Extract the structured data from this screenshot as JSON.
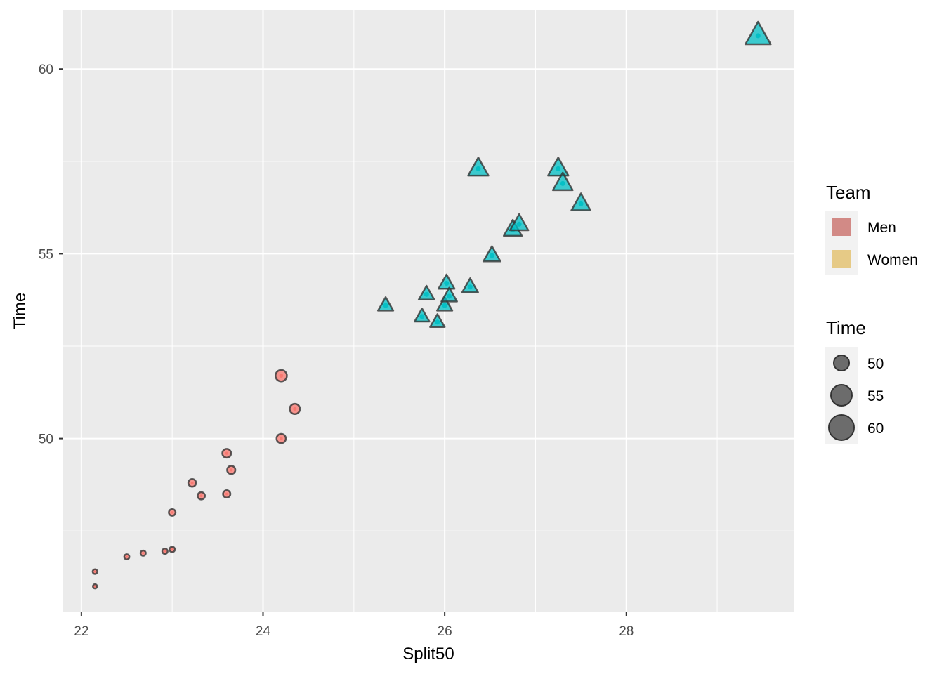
{
  "chart_data": {
    "type": "scatter",
    "xlabel": "Split50",
    "ylabel": "Time",
    "xlim": [
      21.8,
      29.85
    ],
    "ylim": [
      45.3,
      61.6
    ],
    "x_ticks": [
      22,
      24,
      26,
      28
    ],
    "x_minor_ticks": [
      23,
      25,
      27,
      29
    ],
    "y_ticks": [
      50,
      55,
      60
    ],
    "y_minor_ticks": [
      47.5,
      52.5,
      57.5
    ],
    "grid": true,
    "panel_color": "#ebebeb",
    "series": [
      {
        "name": "Men",
        "shape": "circle",
        "color": "#f8766d",
        "points": [
          {
            "x": 22.15,
            "y": 46.0
          },
          {
            "x": 22.15,
            "y": 46.4
          },
          {
            "x": 22.5,
            "y": 46.8
          },
          {
            "x": 22.68,
            "y": 46.9
          },
          {
            "x": 22.92,
            "y": 46.95
          },
          {
            "x": 23.0,
            "y": 47.0
          },
          {
            "x": 23.0,
            "y": 48.0
          },
          {
            "x": 23.22,
            "y": 48.8
          },
          {
            "x": 23.32,
            "y": 48.45
          },
          {
            "x": 23.6,
            "y": 48.5
          },
          {
            "x": 23.6,
            "y": 49.6
          },
          {
            "x": 23.65,
            "y": 49.15
          },
          {
            "x": 24.2,
            "y": 50.0
          },
          {
            "x": 24.2,
            "y": 51.7
          },
          {
            "x": 24.35,
            "y": 50.8
          }
        ]
      },
      {
        "name": "Women",
        "shape": "triangle",
        "color": "#00bfc4",
        "points": [
          {
            "x": 25.35,
            "y": 53.6
          },
          {
            "x": 25.75,
            "y": 53.3
          },
          {
            "x": 25.8,
            "y": 53.9
          },
          {
            "x": 25.92,
            "y": 53.15
          },
          {
            "x": 26.0,
            "y": 53.6
          },
          {
            "x": 26.02,
            "y": 54.2
          },
          {
            "x": 26.05,
            "y": 53.85
          },
          {
            "x": 26.28,
            "y": 54.1
          },
          {
            "x": 26.52,
            "y": 54.95
          },
          {
            "x": 26.75,
            "y": 55.65
          },
          {
            "x": 26.82,
            "y": 55.8
          },
          {
            "x": 26.37,
            "y": 57.3
          },
          {
            "x": 27.25,
            "y": 57.3
          },
          {
            "x": 27.3,
            "y": 56.9
          },
          {
            "x": 27.5,
            "y": 56.35
          },
          {
            "x": 29.45,
            "y": 60.9
          }
        ]
      }
    ],
    "legends": [
      {
        "title": "Team",
        "entries": [
          {
            "label": "Men",
            "color": "#d28a86"
          },
          {
            "label": "Women",
            "color": "#e6ca86"
          }
        ]
      },
      {
        "title": "Time",
        "entries": [
          {
            "label": "50",
            "value": 50
          },
          {
            "label": "55",
            "value": 55
          },
          {
            "label": "60",
            "value": 60
          }
        ]
      }
    ],
    "legend_position": "right"
  }
}
